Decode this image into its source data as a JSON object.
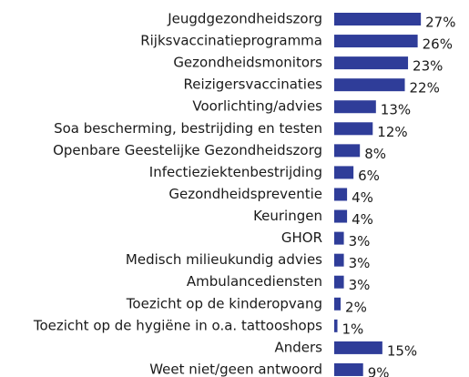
{
  "chart_data": {
    "type": "bar",
    "orientation": "horizontal",
    "categories": [
      "Jeugdgezondheidszorg",
      "Rijksvaccinatieprogramma",
      "Gezondheidsmonitors",
      "Reizigersvaccinaties",
      "Voorlichting/advies",
      "Soa bescherming, bestrijding en testen",
      "Openbare Geestelijke Gezondheidszorg",
      "Infectieziektenbestrijding",
      "Gezondheidspreventie",
      "Keuringen",
      "GHOR",
      "Medisch milieukundig advies",
      "Ambulancediensten",
      "Toezicht op de kinderopvang",
      "Toezicht op de hygiëne in o.a. tattooshops",
      "Anders",
      "Weet niet/geen antwoord"
    ],
    "values": [
      27,
      26,
      23,
      22,
      13,
      12,
      8,
      6,
      4,
      4,
      3,
      3,
      3,
      2,
      1,
      15,
      9
    ],
    "value_labels": [
      "27%",
      "26%",
      "23%",
      "22%",
      "13%",
      "12%",
      "8%",
      "6%",
      "4%",
      "4%",
      "3%",
      "3%",
      "3%",
      "2%",
      "1%",
      "15%",
      "9%"
    ],
    "color": "#2f3d99",
    "xlim": [
      0,
      42
    ]
  }
}
